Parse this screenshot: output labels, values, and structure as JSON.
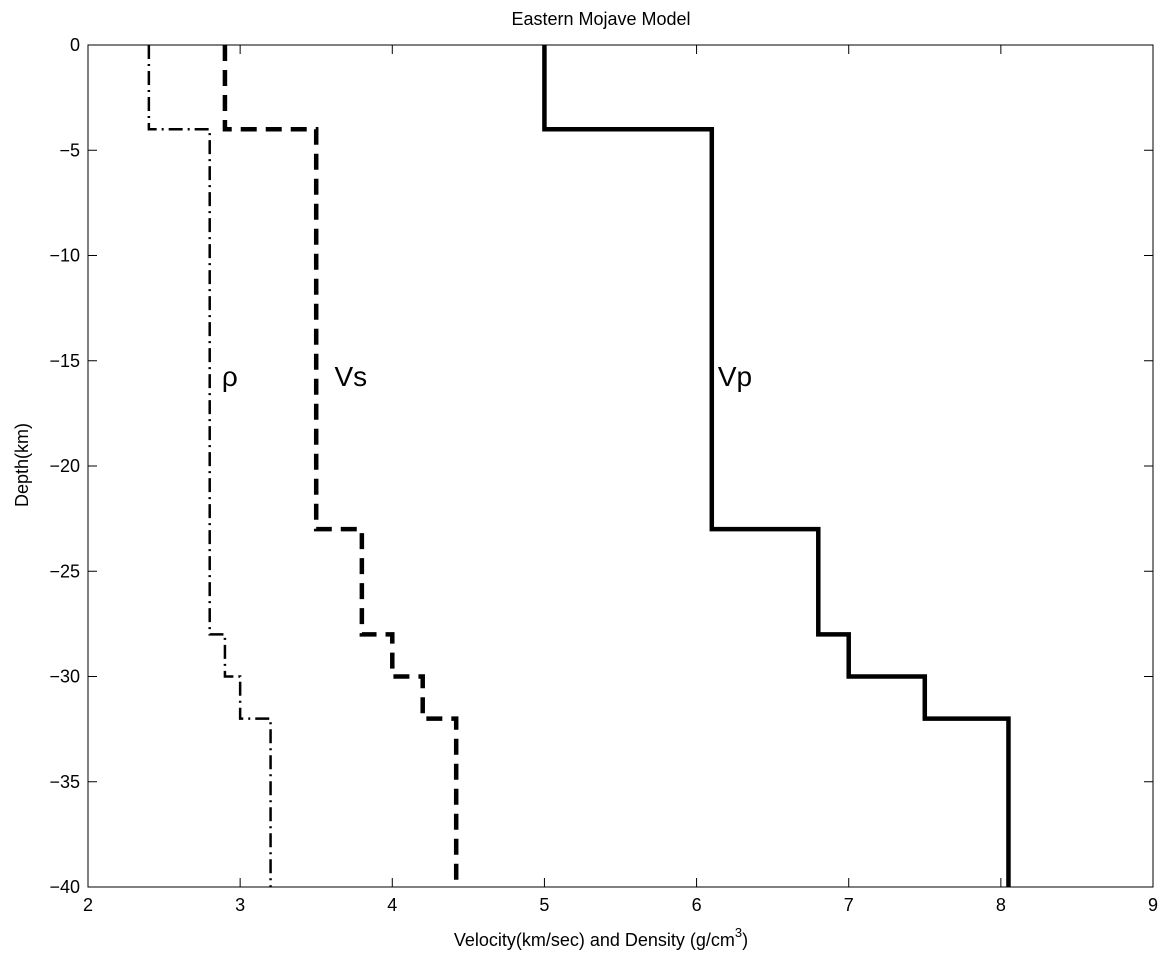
{
  "chart_data": {
    "type": "line",
    "title": "Eastern Mojave Model",
    "xlabel": "Velocity(km/sec) and Density (g/cm",
    "xlabel_sup": "3",
    "xlabel_end": ")",
    "ylabel": "Depth(km)",
    "xlim": [
      2,
      9
    ],
    "ylim": [
      -40,
      0
    ],
    "xticks": [
      2,
      3,
      4,
      5,
      6,
      7,
      8,
      9
    ],
    "yticks": [
      0,
      -5,
      -10,
      -15,
      -20,
      -25,
      -30,
      -35,
      -40
    ],
    "ytick_labels": [
      "0",
      "−5",
      "−10",
      "−15",
      "−20",
      "−25",
      "−30",
      "−35",
      "−40"
    ],
    "grid": false,
    "series": [
      {
        "name": "Vp",
        "style": "solid",
        "x": [
          5.0,
          5.0,
          6.1,
          6.1,
          6.8,
          6.8,
          7.0,
          7.0,
          7.5,
          7.5,
          8.05,
          8.05
        ],
        "y": [
          0,
          -4,
          -4,
          -23,
          -23,
          -28,
          -28,
          -30,
          -30,
          -32,
          -32,
          -40
        ]
      },
      {
        "name": "Vs",
        "style": "dashed",
        "x": [
          2.9,
          2.9,
          3.5,
          3.5,
          3.8,
          3.8,
          4.0,
          4.0,
          4.2,
          4.2,
          4.42,
          4.42
        ],
        "y": [
          0,
          -4,
          -4,
          -23,
          -23,
          -28,
          -28,
          -30,
          -30,
          -32,
          -32,
          -40
        ]
      },
      {
        "name": "ρ",
        "style": "dashdot",
        "x": [
          2.4,
          2.4,
          2.8,
          2.8,
          2.9,
          2.9,
          3.0,
          3.0,
          3.2,
          3.2
        ],
        "y": [
          0,
          -4,
          -4,
          -28,
          -28,
          -30,
          -30,
          -32,
          -32,
          -40
        ]
      }
    ],
    "annotations": [
      {
        "text": "ρ",
        "x": 2.88,
        "y": -16.2
      },
      {
        "text": "Vs",
        "x": 3.62,
        "y": -16.2
      },
      {
        "text": "Vp",
        "x": 6.14,
        "y": -16.2
      }
    ]
  }
}
